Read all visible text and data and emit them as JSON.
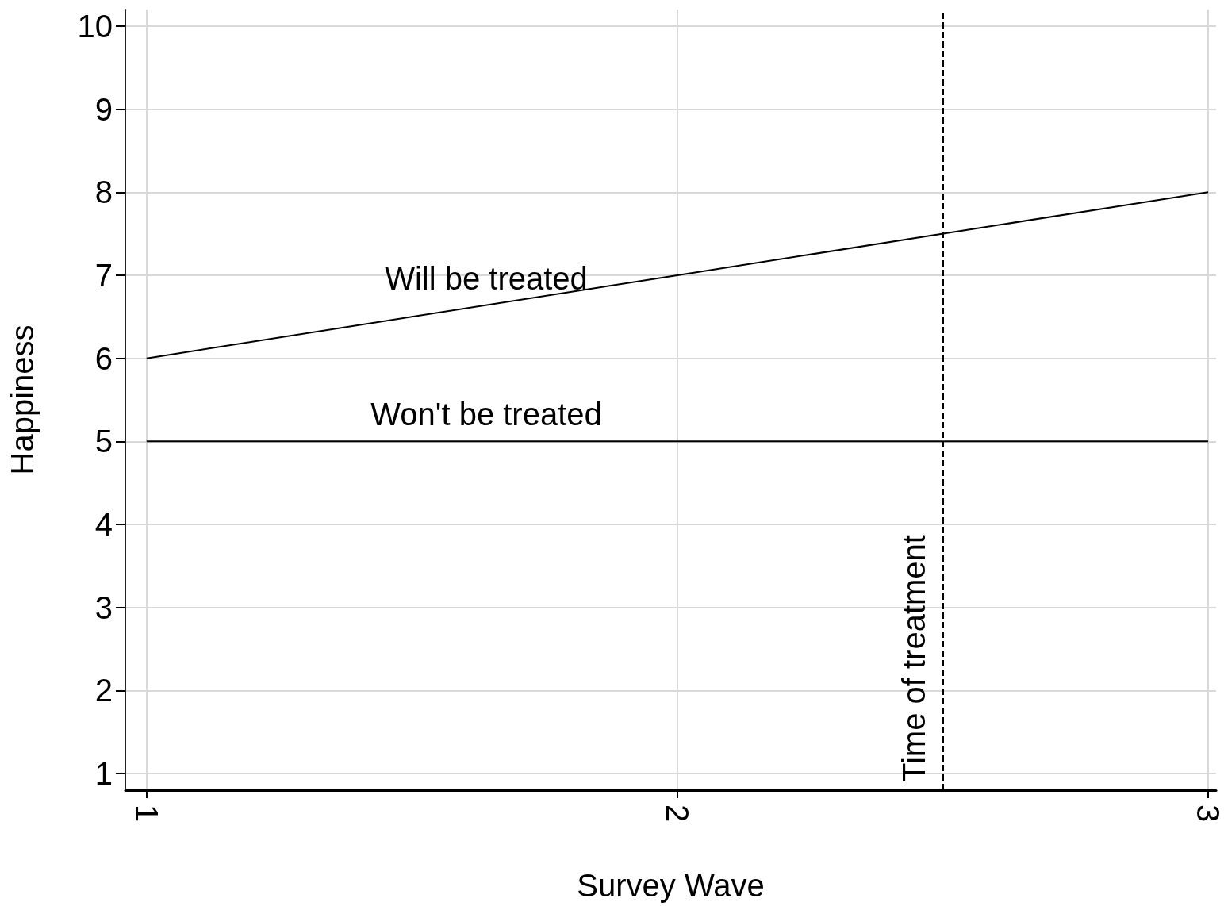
{
  "chart_data": {
    "type": "line",
    "xlabel": "Survey Wave",
    "ylabel": "Happiness",
    "series": [
      {
        "name": "Will be treated",
        "color": "#000000",
        "x": [
          1,
          2,
          3
        ],
        "values": [
          6,
          7,
          8
        ]
      },
      {
        "name": "Won't be treated",
        "color": "#000000",
        "x": [
          1,
          2,
          3
        ],
        "values": [
          5,
          5,
          5
        ]
      }
    ],
    "xlim": [
      0.96,
      3.015
    ],
    "xticks": [
      1,
      2,
      3
    ],
    "ylim": [
      0.8,
      10.2
    ],
    "yticks": [
      1,
      2,
      3,
      4,
      5,
      6,
      7,
      8,
      9,
      10
    ],
    "ref_lines": [
      {
        "axis": "x",
        "value": 2.5,
        "label": "Time of treatment",
        "line_style": "dashed",
        "color": "#000000"
      }
    ],
    "grid": true,
    "legend": false,
    "marker": "none",
    "line_style": "solid"
  }
}
